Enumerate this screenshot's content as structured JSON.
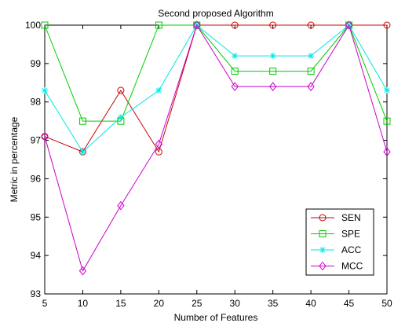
{
  "chart_data": {
    "type": "line",
    "title": "Second proposed Algorithm",
    "xlabel": "Number of Features",
    "ylabel": "Metric in percentage",
    "x": [
      5,
      10,
      15,
      20,
      25,
      30,
      35,
      40,
      45,
      50
    ],
    "xlim": [
      5,
      50
    ],
    "ylim": [
      93,
      100
    ],
    "xticks": [
      5,
      10,
      15,
      20,
      25,
      30,
      35,
      40,
      45,
      50
    ],
    "yticks": [
      93,
      94,
      95,
      96,
      97,
      98,
      99,
      100
    ],
    "grid": false,
    "legend_position": "bottom-right",
    "series": [
      {
        "name": "SEN",
        "color": "#cc0000",
        "marker": "circle",
        "values": [
          97.1,
          96.7,
          98.3,
          96.7,
          100,
          100,
          100,
          100,
          100,
          100
        ]
      },
      {
        "name": "SPE",
        "color": "#00cc00",
        "marker": "square",
        "values": [
          100,
          97.5,
          97.5,
          100,
          100,
          98.8,
          98.8,
          98.8,
          100,
          97.5
        ]
      },
      {
        "name": "ACC",
        "color": "#00e5e5",
        "marker": "asterisk",
        "values": [
          98.3,
          96.7,
          97.6,
          98.3,
          100,
          99.2,
          99.2,
          99.2,
          100,
          98.3
        ]
      },
      {
        "name": "MCC",
        "color": "#cc00cc",
        "marker": "diamond",
        "values": [
          97.1,
          93.6,
          95.3,
          96.9,
          100,
          98.4,
          98.4,
          98.4,
          100,
          96.7
        ]
      }
    ]
  }
}
